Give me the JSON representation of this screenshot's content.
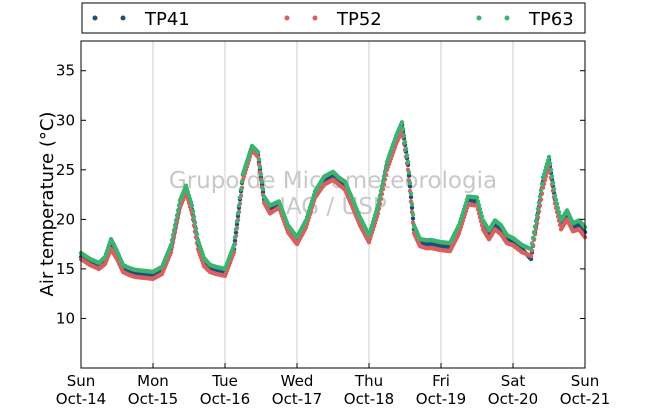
{
  "chart_data": {
    "type": "scatter",
    "title": "",
    "xlabel": "",
    "ylabel": "Air temperature (°C)",
    "xlim": [
      "2018-10-14T00:00",
      "2018-10-21T00:00"
    ],
    "ylim": [
      5,
      38
    ],
    "yticks": [
      10,
      15,
      20,
      25,
      30,
      35
    ],
    "x_tick_labels": [
      {
        "x": "2018-10-14T00:00",
        "day": "Sun",
        "date": "Oct-14"
      },
      {
        "x": "2018-10-15T00:00",
        "day": "Mon",
        "date": "Oct-15"
      },
      {
        "x": "2018-10-16T00:00",
        "day": "Tue",
        "date": "Oct-16"
      },
      {
        "x": "2018-10-17T00:00",
        "day": "Wed",
        "date": "Oct-17"
      },
      {
        "x": "2018-10-18T00:00",
        "day": "Thu",
        "date": "Oct-18"
      },
      {
        "x": "2018-10-19T00:00",
        "day": "Fri",
        "date": "Oct-19"
      },
      {
        "x": "2018-10-20T00:00",
        "day": "Sat",
        "date": "Oct-20"
      },
      {
        "x": "2018-10-21T00:00",
        "day": "Sun",
        "date": "Oct-21"
      }
    ],
    "grid": "vertical",
    "legend_position": "top",
    "watermark": [
      "Grupo de Micrometeorologia",
      "IAG / USP"
    ],
    "colors": {
      "TP41": "#1f4e79",
      "TP52": "#d9605e",
      "TP63": "#3cb371"
    },
    "x": [
      "2018-10-14T00:00",
      "2018-10-14T03:00",
      "2018-10-14T06:00",
      "2018-10-14T08:00",
      "2018-10-14T10:00",
      "2018-10-14T12:00",
      "2018-10-14T14:00",
      "2018-10-14T16:00",
      "2018-10-14T18:00",
      "2018-10-14T21:00",
      "2018-10-15T00:00",
      "2018-10-15T03:00",
      "2018-10-15T06:00",
      "2018-10-15T09:00",
      "2018-10-15T11:00",
      "2018-10-15T13:00",
      "2018-10-15T15:00",
      "2018-10-15T17:00",
      "2018-10-15T19:00",
      "2018-10-15T21:00",
      "2018-10-16T00:00",
      "2018-10-16T03:00",
      "2018-10-16T06:00",
      "2018-10-16T09:00",
      "2018-10-16T11:00",
      "2018-10-16T13:00",
      "2018-10-16T15:00",
      "2018-10-16T18:00",
      "2018-10-16T21:00",
      "2018-10-17T00:00",
      "2018-10-17T03:00",
      "2018-10-17T06:00",
      "2018-10-17T09:00",
      "2018-10-17T12:00",
      "2018-10-17T14:00",
      "2018-10-17T16:00",
      "2018-10-17T18:00",
      "2018-10-17T21:00",
      "2018-10-18T00:00",
      "2018-10-18T03:00",
      "2018-10-18T06:00",
      "2018-10-18T09:00",
      "2018-10-18T11:00",
      "2018-10-18T13:00",
      "2018-10-18T15:00",
      "2018-10-18T17:00",
      "2018-10-18T19:00",
      "2018-10-18T21:00",
      "2018-10-19T00:00",
      "2018-10-19T03:00",
      "2018-10-19T06:00",
      "2018-10-19T09:00",
      "2018-10-19T12:00",
      "2018-10-19T14:00",
      "2018-10-19T16:00",
      "2018-10-19T18:00",
      "2018-10-19T20:00",
      "2018-10-19T22:00",
      "2018-10-20T00:00",
      "2018-10-20T03:00",
      "2018-10-20T06:00",
      "2018-10-20T08:00",
      "2018-10-20T10:00",
      "2018-10-20T12:00",
      "2018-10-20T14:00",
      "2018-10-20T16:00",
      "2018-10-20T18:00",
      "2018-10-20T20:00",
      "2018-10-20T22:00",
      "2018-10-21T00:00"
    ],
    "series": [
      {
        "name": "TP41",
        "values": [
          16.2,
          15.6,
          15.2,
          15.8,
          17.5,
          16.4,
          15.0,
          14.7,
          14.5,
          14.4,
          14.3,
          14.8,
          17.0,
          21.5,
          23.0,
          21.0,
          17.5,
          15.7,
          15.0,
          14.8,
          14.6,
          17.0,
          24.5,
          27.3,
          26.5,
          22.0,
          21.0,
          21.5,
          19.0,
          17.8,
          19.5,
          22.5,
          24.0,
          24.5,
          23.8,
          23.5,
          22.0,
          19.8,
          18.0,
          21.0,
          25.5,
          28.0,
          29.5,
          25.5,
          19.0,
          17.6,
          17.5,
          17.5,
          17.3,
          17.2,
          19.0,
          22.0,
          21.8,
          19.5,
          18.5,
          19.5,
          19.0,
          18.0,
          17.7,
          17.0,
          16.0,
          20.0,
          23.8,
          26.0,
          22.0,
          19.5,
          20.5,
          19.2,
          19.5,
          18.7
        ]
      },
      {
        "name": "TP52",
        "values": [
          16.0,
          15.4,
          15.0,
          15.5,
          17.0,
          16.0,
          14.7,
          14.4,
          14.2,
          14.1,
          14.0,
          14.5,
          16.7,
          21.2,
          22.7,
          20.6,
          17.0,
          15.3,
          14.7,
          14.5,
          14.3,
          16.7,
          24.0,
          27.0,
          26.3,
          21.7,
          20.6,
          21.2,
          18.7,
          17.5,
          19.2,
          22.2,
          23.5,
          24.0,
          23.5,
          23.0,
          21.6,
          19.4,
          17.7,
          20.6,
          25.0,
          27.6,
          29.0,
          25.0,
          18.6,
          17.3,
          17.1,
          17.1,
          16.9,
          16.8,
          18.6,
          21.5,
          21.4,
          19.0,
          18.0,
          19.0,
          18.5,
          17.6,
          17.4,
          16.7,
          16.3,
          19.6,
          23.2,
          25.5,
          21.6,
          19.0,
          20.0,
          18.8,
          19.0,
          18.2
        ]
      },
      {
        "name": "TP63",
        "values": [
          16.6,
          16.0,
          15.6,
          16.2,
          18.0,
          16.8,
          15.4,
          15.1,
          14.9,
          14.8,
          14.7,
          15.2,
          17.4,
          21.9,
          23.4,
          21.4,
          17.9,
          16.1,
          15.4,
          15.2,
          15.0,
          17.4,
          24.6,
          27.4,
          26.8,
          22.3,
          21.4,
          21.8,
          19.4,
          18.2,
          19.9,
          22.8,
          24.3,
          24.8,
          24.2,
          23.8,
          22.4,
          20.2,
          18.4,
          21.4,
          25.8,
          28.4,
          29.8,
          25.8,
          19.4,
          18.0,
          17.9,
          17.9,
          17.7,
          17.6,
          19.4,
          22.3,
          22.2,
          19.9,
          18.9,
          19.9,
          19.4,
          18.4,
          18.1,
          17.4,
          17.0,
          20.4,
          24.2,
          26.3,
          22.4,
          19.9,
          20.9,
          19.6,
          19.9,
          19.2
        ]
      }
    ]
  }
}
